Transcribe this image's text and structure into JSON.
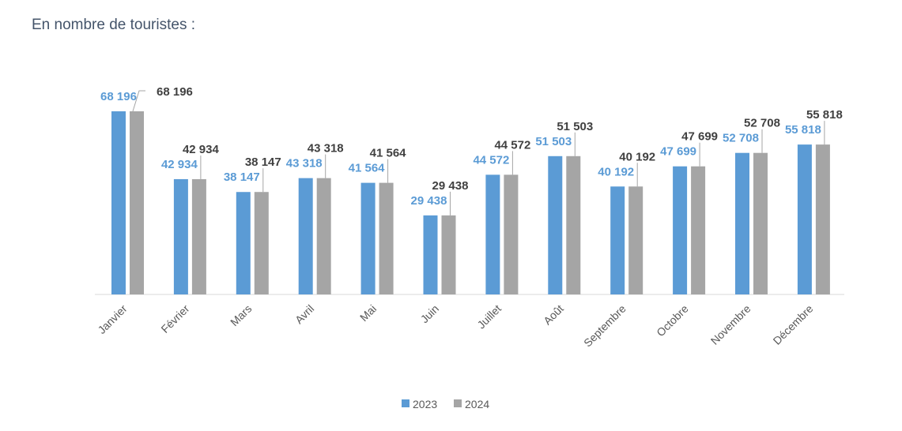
{
  "title": "En nombre de touristes :",
  "chart_data": {
    "type": "bar",
    "title": "En nombre de touristes :",
    "xlabel": "",
    "ylabel": "",
    "ylim": [
      0,
      70000
    ],
    "grid": false,
    "legend_position": "bottom",
    "categories": [
      "Janvier",
      "Février",
      "Mars",
      "Avril",
      "Mai",
      "Juin",
      "Juillet",
      "Août",
      "Septembre",
      "Octobre",
      "Novembre",
      "Décembre"
    ],
    "series": [
      {
        "name": "2023",
        "color": "#5b9bd5",
        "values": [
          68196,
          42934,
          38147,
          43318,
          41564,
          29438,
          44572,
          51503,
          40192,
          47699,
          52708,
          55818
        ],
        "labels": [
          "68 196",
          "42 934",
          "38 147",
          "43 318",
          "41 564",
          "29 438",
          "44 572",
          "51 503",
          "40 192",
          "47 699",
          "52 708",
          "55 818"
        ]
      },
      {
        "name": "2024",
        "color": "#a5a5a5",
        "label_color": "#404040",
        "values": [
          68196,
          42934,
          38147,
          43318,
          41564,
          29438,
          44572,
          51503,
          40192,
          47699,
          52708,
          55818
        ],
        "labels": [
          "68 196",
          "42 934",
          "38 147",
          "43 318",
          "41 564",
          "29 438",
          "44 572",
          "51 503",
          "40 192",
          "47 699",
          "52 708",
          "55 818"
        ]
      }
    ]
  }
}
